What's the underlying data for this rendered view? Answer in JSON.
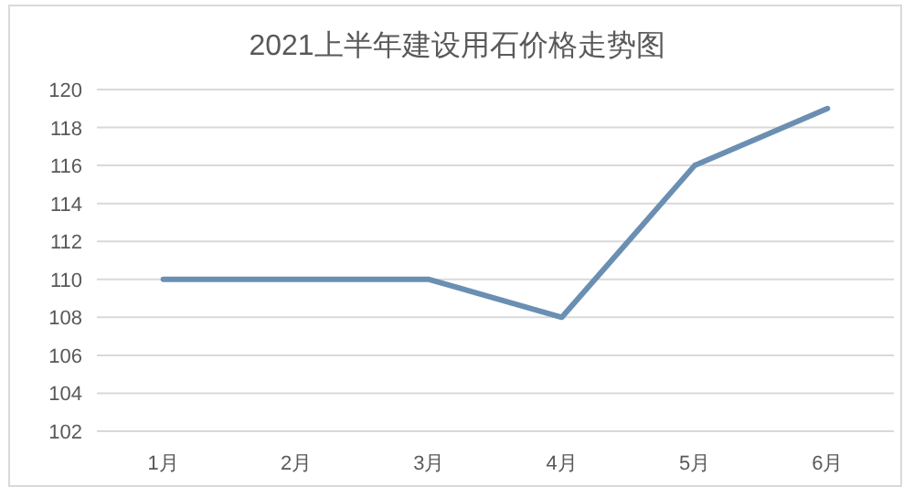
{
  "chart_data": {
    "type": "line",
    "title": "2021上半年建设用石价格走势图",
    "categories": [
      "1月",
      "2月",
      "3月",
      "4月",
      "5月",
      "6月"
    ],
    "series": [
      {
        "color": "#6a8fb2",
        "values": [
          110,
          110,
          110,
          108,
          116,
          119
        ]
      }
    ],
    "ylim": [
      102,
      120
    ],
    "yticks": [
      102,
      104,
      106,
      108,
      110,
      112,
      114,
      116,
      118,
      120
    ],
    "grid": "y",
    "marker": "none",
    "line_style": "solid"
  }
}
